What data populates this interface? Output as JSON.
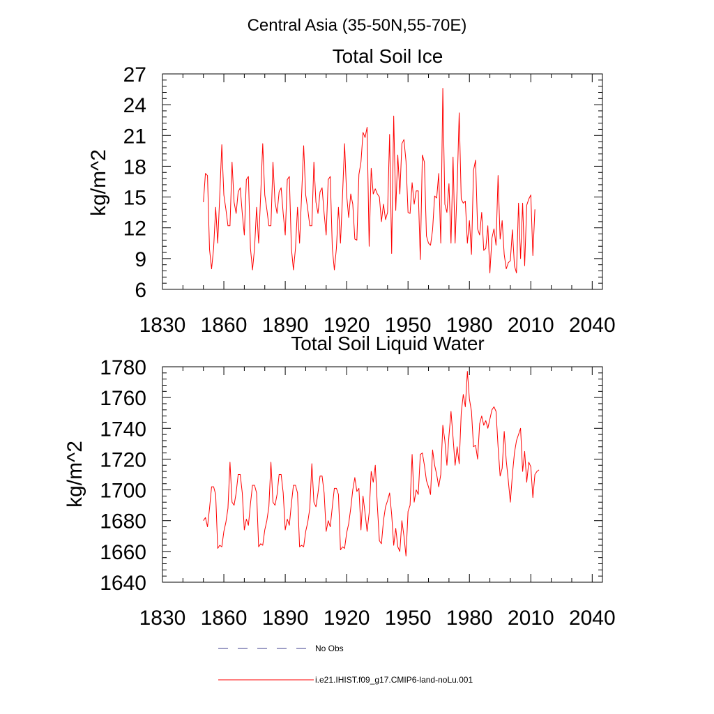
{
  "figure": {
    "title": "Central Asia (35-50N,55-70E)"
  },
  "legend": {
    "entries": [
      {
        "label": "No Obs",
        "color": "#3c3c8c",
        "style": "dashed"
      },
      {
        "label": "i.e21.IHIST.f09_g17.CMIP6-land-noLu.001",
        "color": "#ff0000",
        "style": "solid"
      }
    ]
  },
  "chart_data": [
    {
      "type": "line",
      "title": "Total Soil Ice",
      "ylabel": "kg/m^2",
      "xlabel": "",
      "xlim": [
        1830,
        2045
      ],
      "ylim": [
        6,
        27
      ],
      "xticks": [
        1830,
        1860,
        1890,
        1920,
        1950,
        1980,
        2010,
        2040
      ],
      "yticks": [
        6,
        9,
        12,
        15,
        18,
        21,
        24,
        27
      ],
      "grid": false,
      "series": [
        {
          "color": "#ff0000",
          "x_start": 1850,
          "x_step": 1,
          "values": [
            14.5,
            17.3,
            17.1,
            9.9,
            8.0,
            10.0,
            14.0,
            10.5,
            15.2,
            20.1,
            15.2,
            13.8,
            12.2,
            12.2,
            18.4,
            14.5,
            13.4,
            15.5,
            15.9,
            13.4,
            11.3,
            16.7,
            17.0,
            10.0,
            7.9,
            10.0,
            14.0,
            10.5,
            15.2,
            20.2,
            15.2,
            13.8,
            12.2,
            12.2,
            18.4,
            14.5,
            13.4,
            15.5,
            15.9,
            13.4,
            11.3,
            16.7,
            17.0,
            10.0,
            7.9,
            10.0,
            14.0,
            10.5,
            15.2,
            20.0,
            15.2,
            13.8,
            12.2,
            12.2,
            18.4,
            14.5,
            13.4,
            15.5,
            15.9,
            13.4,
            11.3,
            16.7,
            17.0,
            10.0,
            7.9,
            10.0,
            14.0,
            10.5,
            15.2,
            20.2,
            15.2,
            13.0,
            15.3,
            14.3,
            10.9,
            10.8,
            17.2,
            18.4,
            21.3,
            20.8,
            21.8,
            10.2,
            17.8,
            15.3,
            15.8,
            15.3,
            15.0,
            12.6,
            14.3,
            12.8,
            13.5,
            21.1,
            9.5,
            22.9,
            13.7,
            19.1,
            15.3,
            20.2,
            20.6,
            18.5,
            13.5,
            13.4,
            16.4,
            14.3,
            15.6,
            15.6,
            8.9,
            19.1,
            18.4,
            11.2,
            10.5,
            10.3,
            11.8,
            15.1,
            14.9,
            17.3,
            10.5,
            25.6,
            14.3,
            13.5,
            16.3,
            10.5,
            18.9,
            10.5,
            15.9,
            23.2,
            14.8,
            14.4,
            14.6,
            10.5,
            12.7,
            9.4,
            17.6,
            18.6,
            11.9,
            11.3,
            13.5,
            9.8,
            10.0,
            12.2,
            7.6,
            11.0,
            11.9,
            10.3,
            17.1,
            10.9,
            12.7,
            9.4,
            8.0,
            8.6,
            8.8,
            11.8,
            8.3,
            7.6,
            14.4,
            9.0,
            14.4,
            8.3,
            14.2,
            14.8,
            15.2,
            9.3,
            13.8
          ]
        }
      ]
    },
    {
      "type": "line",
      "title": "Total Soil Liquid Water",
      "ylabel": "kg/m^2",
      "xlabel": "",
      "xlim": [
        1830,
        2045
      ],
      "ylim": [
        1640,
        1780
      ],
      "xticks": [
        1830,
        1860,
        1890,
        1920,
        1950,
        1980,
        2010,
        2040
      ],
      "yticks": [
        1640,
        1660,
        1680,
        1700,
        1720,
        1740,
        1760,
        1780
      ],
      "grid": false,
      "series": [
        {
          "color": "#ff0000",
          "x_start": 1850,
          "x_step": 1,
          "values": [
            1680,
            1682,
            1676,
            1688,
            1702,
            1702,
            1697,
            1662,
            1664,
            1663,
            1673,
            1679,
            1688,
            1718,
            1692,
            1690,
            1698,
            1710,
            1710,
            1698,
            1674,
            1681,
            1677,
            1691,
            1703,
            1703,
            1698,
            1663,
            1665,
            1664,
            1674,
            1680,
            1689,
            1718,
            1692,
            1690,
            1697,
            1710,
            1710,
            1698,
            1674,
            1681,
            1677,
            1691,
            1703,
            1703,
            1698,
            1663,
            1664,
            1663,
            1673,
            1679,
            1688,
            1717,
            1692,
            1689,
            1698,
            1709,
            1709,
            1698,
            1673,
            1680,
            1676,
            1689,
            1701,
            1701,
            1697,
            1661,
            1663,
            1662,
            1672,
            1678,
            1688,
            1700,
            1708,
            1699,
            1701,
            1674,
            1696,
            1685,
            1673,
            1685,
            1712,
            1705,
            1716,
            1690,
            1667,
            1665,
            1680,
            1689,
            1693,
            1698,
            1684,
            1664,
            1675,
            1663,
            1660,
            1680,
            1670,
            1657,
            1686,
            1690,
            1723,
            1692,
            1700,
            1697,
            1723,
            1724,
            1716,
            1706,
            1702,
            1697,
            1726,
            1716,
            1710,
            1702,
            1710,
            1742,
            1732,
            1716,
            1735,
            1751,
            1734,
            1716,
            1728,
            1717,
            1750,
            1762,
            1754,
            1777,
            1759,
            1751,
            1728,
            1729,
            1720,
            1743,
            1748,
            1742,
            1745,
            1740,
            1746,
            1752,
            1754,
            1751,
            1728,
            1709,
            1714,
            1738,
            1719,
            1706,
            1692,
            1710,
            1724,
            1732,
            1736,
            1740,
            1712,
            1725,
            1705,
            1718,
            1715,
            1695,
            1710,
            1712,
            1713
          ]
        }
      ]
    }
  ]
}
